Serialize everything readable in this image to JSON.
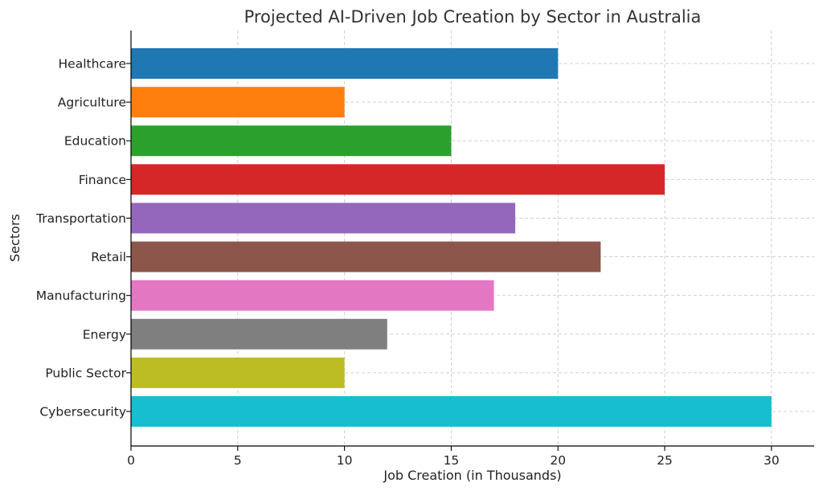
{
  "chart_data": {
    "type": "bar",
    "orientation": "horizontal",
    "title": "Projected AI-Driven Job Creation by Sector in Australia",
    "xlabel": "Job Creation (in Thousands)",
    "ylabel": "Sectors",
    "xlim": [
      0,
      32
    ],
    "xticks": [
      0,
      5,
      10,
      15,
      20,
      25,
      30
    ],
    "grid": true,
    "categories": [
      "Healthcare",
      "Agriculture",
      "Education",
      "Finance",
      "Transportation",
      "Retail",
      "Manufacturing",
      "Energy",
      "Public Sector",
      "Cybersecurity"
    ],
    "values": [
      20,
      10,
      15,
      25,
      18,
      22,
      17,
      12,
      10,
      30
    ],
    "colors": [
      "#1f77b4",
      "#ff7f0e",
      "#2ca02c",
      "#d62728",
      "#9467bd",
      "#8c564b",
      "#e377c2",
      "#7f7f7f",
      "#bcbd22",
      "#17becf"
    ]
  }
}
